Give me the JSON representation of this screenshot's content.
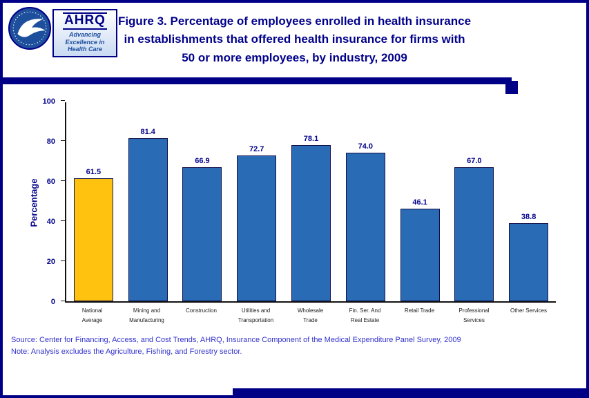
{
  "header": {
    "title": "Figure 3. Percentage of employees enrolled in health insurance\nin establishments that offered health insurance for firms with\n50 or more employees, by industry, 2009",
    "ahrq_logo": {
      "acronym": "AHRQ",
      "tagline": "Advancing\nExcellence in\nHealth Care"
    }
  },
  "chart_data": {
    "type": "bar",
    "title": "Figure 3. Percentage of employees enrolled in health insurance in establishments that offered health insurance for firms with 50 or more employees, by industry, 2009",
    "categories": [
      "National\nAverage",
      "Mining and\nManufacturing",
      "Construction",
      "Utilities and\nTransportation",
      "Wholesale\nTrade",
      "Fin. Ser. And\nReal Estate",
      "Retail Trade",
      "Professional\nServices",
      "Other Services"
    ],
    "values": [
      61.5,
      81.4,
      66.9,
      72.7,
      78.1,
      74.0,
      46.1,
      67.0,
      38.8
    ],
    "bar_colors": [
      "#FFC20E",
      "#2A6BB5",
      "#2A6BB5",
      "#2A6BB5",
      "#2A6BB5",
      "#2A6BB5",
      "#2A6BB5",
      "#2A6BB5",
      "#2A6BB5"
    ],
    "xlabel": "",
    "ylabel": "Percentage",
    "ylim": [
      0,
      100
    ],
    "yticks": [
      0,
      20,
      40,
      60,
      80,
      100
    ],
    "grid": false,
    "legend": "none",
    "value_labels": "one_decimal"
  },
  "footer": {
    "source": "Source: Center for Financing, Access, and Cost Trends, AHRQ, Insurance Component of the Medical Expenditure Panel Survey, 2009",
    "note": "Note: Analysis excludes the Agriculture, Fishing, and Forestry sector."
  },
  "colors": {
    "frame_navy": "#000087",
    "title_blue": "#00008B",
    "bar_blue": "#2A6BB5",
    "highlight_gold": "#FFC20E",
    "footer_blue": "#3333CC"
  }
}
